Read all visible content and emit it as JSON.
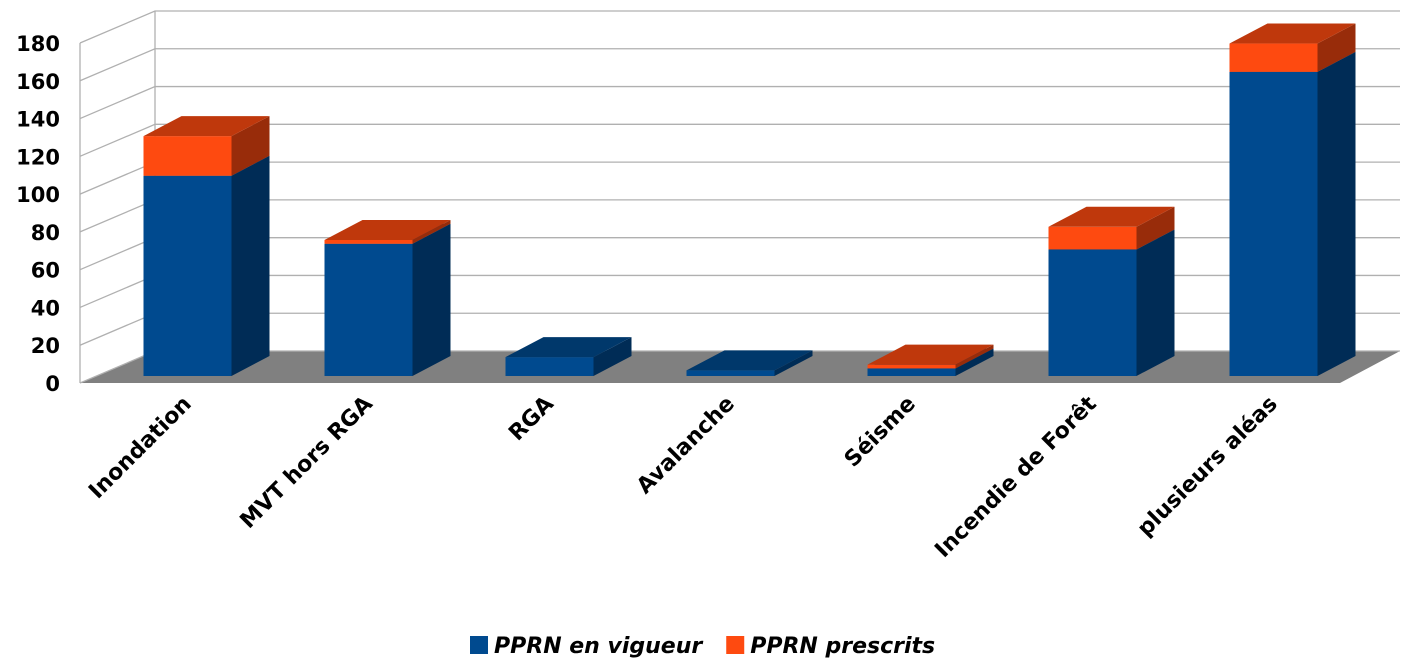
{
  "chart_data": {
    "type": "bar3d_stacked",
    "categories": [
      "Inondation",
      "MVT hors RGA",
      "RGA",
      "Avalanche",
      "Séisme",
      "Incendie de Forêt",
      "plusieurs aléas"
    ],
    "series": [
      {
        "name": "PPRN en vigueur",
        "color": "#004a8f",
        "values": [
          106,
          70,
          10,
          3,
          4,
          67,
          161
        ]
      },
      {
        "name": "PPRN prescrits",
        "color": "#fe4a10",
        "values": [
          21,
          2,
          0,
          0,
          2,
          12,
          15
        ]
      }
    ],
    "ylim": [
      0,
      180
    ],
    "yticks": [
      0,
      20,
      40,
      60,
      80,
      100,
      120,
      140,
      160,
      180
    ],
    "grid": true,
    "legend": "bottom"
  }
}
